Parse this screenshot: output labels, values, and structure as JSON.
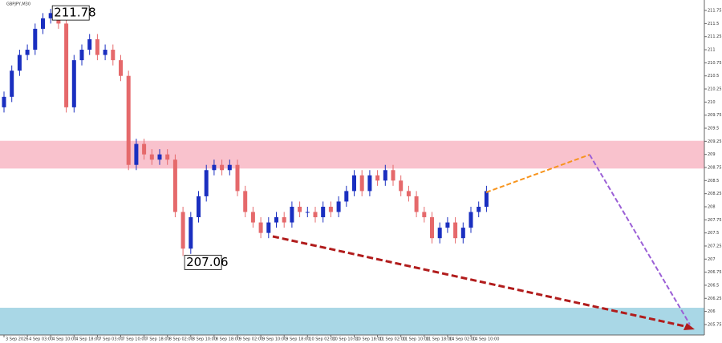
{
  "chart_data": {
    "type": "candlestick",
    "title": "GBPJPY,M30",
    "categories": [
      "3 Sep 2026",
      null,
      null,
      "4 Sep 03:00",
      null,
      null,
      "4 Sep 10:00",
      null,
      null,
      "4 Sep 18:00",
      null,
      null,
      "7 Sep 03:00",
      null,
      null,
      "7 Sep 10:00",
      null,
      null,
      "7 Sep 18:00",
      null,
      null,
      "8 Sep 02:00",
      null,
      null,
      "8 Sep 10:00",
      null,
      null,
      "8 Sep 18:00",
      null,
      null,
      "9 Sep 02:00",
      null,
      null,
      "9 Sep 10:00",
      null,
      null,
      "9 Sep 18:00",
      null,
      null,
      "10 Sep 02:00",
      null,
      null,
      "10 Sep 10:00",
      null,
      null,
      "10 Sep 18:00",
      null,
      null,
      "11 Sep 02:00",
      null,
      null,
      "11 Sep 10:00",
      null,
      null,
      "11 Sep 18:00",
      null,
      null,
      "14 Sep 02:00",
      null,
      null,
      "14 Sep 10:00",
      null,
      null
    ],
    "open": [
      209.9,
      210.1,
      210.6,
      210.9,
      211.0,
      211.4,
      211.6,
      211.7,
      211.5,
      209.9,
      210.8,
      211.0,
      211.2,
      210.9,
      211.0,
      210.8,
      210.5,
      208.8,
      209.2,
      209.0,
      208.9,
      209.0,
      208.9,
      207.9,
      207.2,
      207.8,
      208.2,
      208.7,
      208.8,
      208.7,
      208.8,
      208.3,
      207.9,
      207.7,
      207.5,
      207.7,
      207.8,
      207.7,
      208.0,
      207.9,
      207.9,
      207.8,
      208.0,
      207.9,
      208.1,
      208.3,
      208.6,
      208.3,
      208.6,
      208.5,
      208.7,
      208.5,
      208.3,
      208.2,
      207.9,
      207.8,
      207.4,
      207.6,
      207.7,
      207.4,
      207.6,
      207.9,
      208.0
    ],
    "high": [
      210.2,
      210.7,
      211.0,
      211.1,
      211.5,
      211.7,
      211.78,
      211.75,
      211.6,
      210.9,
      211.1,
      211.3,
      211.3,
      211.1,
      211.1,
      210.9,
      210.6,
      209.3,
      209.3,
      209.1,
      209.1,
      209.1,
      209.0,
      208.0,
      207.9,
      208.3,
      208.8,
      208.9,
      208.9,
      208.9,
      208.9,
      208.4,
      208.0,
      207.8,
      207.8,
      207.9,
      207.9,
      208.1,
      208.1,
      208.0,
      208.0,
      208.1,
      208.1,
      208.2,
      208.4,
      208.7,
      208.7,
      208.7,
      208.7,
      208.8,
      208.8,
      208.6,
      208.4,
      208.3,
      208.0,
      207.9,
      207.7,
      207.8,
      207.8,
      207.7,
      208.0,
      208.1,
      208.4
    ],
    "low": [
      209.8,
      210.0,
      210.5,
      210.8,
      210.9,
      211.3,
      211.5,
      211.4,
      209.8,
      209.8,
      210.7,
      210.9,
      210.8,
      210.8,
      210.7,
      210.4,
      208.7,
      208.7,
      208.9,
      208.8,
      208.8,
      208.8,
      207.8,
      207.06,
      207.1,
      207.7,
      208.1,
      208.6,
      208.6,
      208.6,
      208.2,
      207.8,
      207.6,
      207.4,
      207.4,
      207.6,
      207.6,
      207.6,
      207.8,
      207.8,
      207.7,
      207.7,
      207.8,
      207.8,
      208.0,
      208.2,
      208.2,
      208.2,
      208.4,
      208.4,
      208.4,
      208.2,
      208.1,
      207.8,
      207.7,
      207.3,
      207.3,
      207.5,
      207.3,
      207.3,
      207.5,
      207.8,
      207.9
    ],
    "close": [
      210.1,
      210.6,
      210.9,
      211.0,
      211.4,
      211.6,
      211.7,
      211.5,
      209.9,
      210.8,
      211.0,
      211.2,
      210.9,
      211.0,
      210.8,
      210.5,
      208.8,
      209.2,
      209.0,
      208.9,
      209.0,
      208.9,
      207.9,
      207.2,
      207.8,
      208.2,
      208.7,
      208.8,
      208.7,
      208.8,
      208.3,
      207.9,
      207.7,
      207.5,
      207.7,
      207.8,
      207.7,
      208.0,
      207.9,
      207.9,
      207.8,
      208.0,
      207.9,
      208.1,
      208.3,
      208.6,
      208.3,
      208.6,
      208.5,
      208.7,
      208.5,
      208.3,
      208.2,
      207.9,
      207.8,
      207.4,
      207.6,
      207.7,
      207.4,
      207.6,
      207.9,
      208.0,
      208.3
    ],
    "up_color": "#1a2fc0",
    "down_color": "#e5696b",
    "ylim": [
      205.55,
      211.95
    ],
    "yticks": [
      205.75,
      206,
      206.25,
      206.5,
      206.75,
      207,
      207.25,
      207.5,
      207.75,
      208,
      208.25,
      208.5,
      208.75,
      209,
      209.25,
      209.5,
      209.75,
      210,
      210.25,
      210.5,
      210.75,
      211,
      211.25,
      211.5,
      211.75
    ],
    "zones": [
      {
        "low": 208.73,
        "high": 209.26,
        "color": "#f9c2cd"
      },
      {
        "low": 205.55,
        "high": 206.07,
        "color": "#a9d7e6"
      }
    ],
    "annotations": [
      211.78,
      207.06
    ]
  }
}
